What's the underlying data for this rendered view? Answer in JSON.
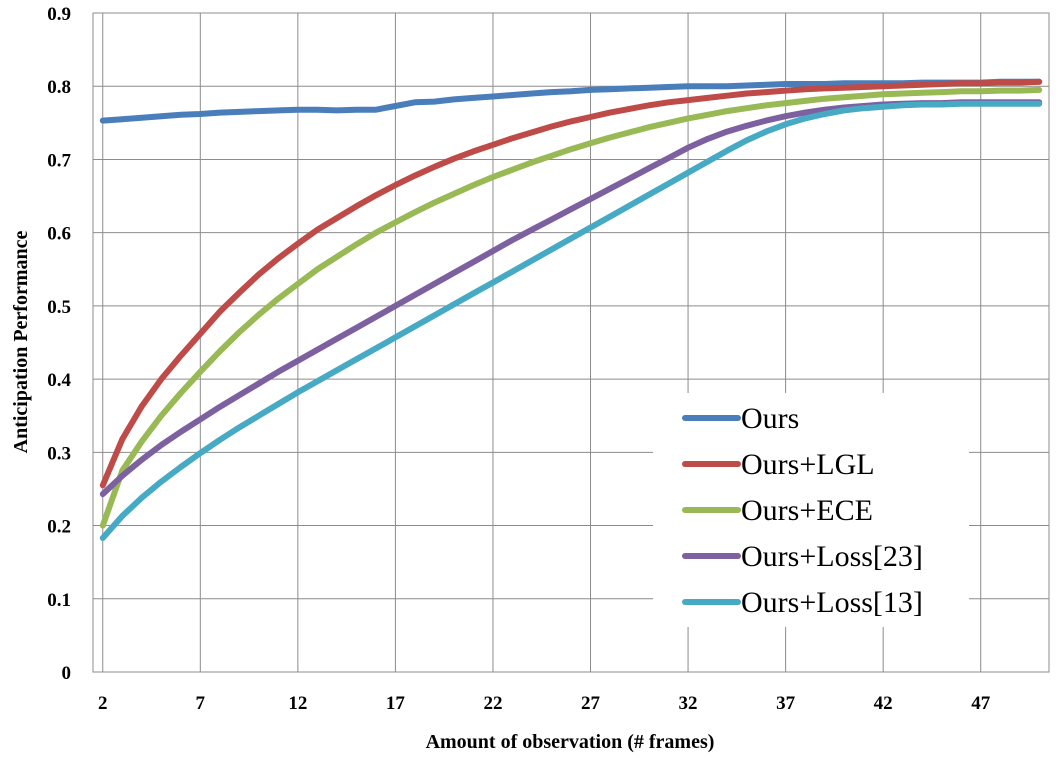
{
  "chart_data": {
    "type": "line",
    "xlabel": "Amount of observation (# frames)",
    "ylabel": "Anticipation Performance",
    "xlim": [
      1.5,
      50.5
    ],
    "ylim": [
      0,
      0.9
    ],
    "x_ticks": [
      "2",
      "7",
      "12",
      "17",
      "22",
      "27",
      "32",
      "37",
      "42",
      "47"
    ],
    "y_ticks": [
      "0",
      "0.1",
      "0.2",
      "0.3",
      "0.4",
      "0.5",
      "0.6",
      "0.7",
      "0.8",
      "0.9"
    ],
    "grid": true,
    "legend_position": "bottom-right",
    "x": [
      2,
      3,
      4,
      5,
      6,
      7,
      8,
      9,
      10,
      11,
      12,
      13,
      14,
      15,
      16,
      17,
      18,
      19,
      20,
      21,
      22,
      23,
      24,
      25,
      26,
      27,
      28,
      29,
      30,
      31,
      32,
      33,
      34,
      35,
      36,
      37,
      38,
      39,
      40,
      41,
      42,
      43,
      44,
      45,
      46,
      47,
      48,
      49,
      50
    ],
    "series": [
      {
        "name": "Ours",
        "color": "#4a7ebb",
        "values": [
          0.753,
          0.755,
          0.757,
          0.759,
          0.761,
          0.762,
          0.764,
          0.765,
          0.766,
          0.767,
          0.768,
          0.768,
          0.767,
          0.768,
          0.768,
          0.773,
          0.778,
          0.779,
          0.782,
          0.784,
          0.786,
          0.788,
          0.79,
          0.792,
          0.793,
          0.795,
          0.796,
          0.797,
          0.798,
          0.799,
          0.8,
          0.8,
          0.8,
          0.801,
          0.802,
          0.803,
          0.803,
          0.803,
          0.804,
          0.804,
          0.804,
          0.804,
          0.805,
          0.805,
          0.805,
          0.805,
          0.806,
          0.806,
          0.806
        ]
      },
      {
        "name": "Ours+LGL",
        "color": "#be4b48",
        "values": [
          0.255,
          0.318,
          0.363,
          0.4,
          0.432,
          0.462,
          0.492,
          0.518,
          0.543,
          0.565,
          0.585,
          0.604,
          0.62,
          0.636,
          0.651,
          0.665,
          0.678,
          0.69,
          0.701,
          0.711,
          0.72,
          0.729,
          0.737,
          0.745,
          0.752,
          0.758,
          0.764,
          0.769,
          0.774,
          0.778,
          0.781,
          0.784,
          0.787,
          0.79,
          0.792,
          0.794,
          0.796,
          0.797,
          0.798,
          0.799,
          0.8,
          0.801,
          0.802,
          0.803,
          0.804,
          0.804,
          0.805,
          0.805,
          0.806
        ]
      },
      {
        "name": "Ours+ECE",
        "color": "#98b954",
        "values": [
          0.2,
          0.275,
          0.315,
          0.35,
          0.381,
          0.41,
          0.438,
          0.464,
          0.488,
          0.51,
          0.53,
          0.55,
          0.567,
          0.584,
          0.6,
          0.614,
          0.628,
          0.641,
          0.653,
          0.665,
          0.676,
          0.686,
          0.696,
          0.705,
          0.714,
          0.722,
          0.73,
          0.737,
          0.744,
          0.75,
          0.756,
          0.761,
          0.766,
          0.77,
          0.774,
          0.777,
          0.78,
          0.783,
          0.785,
          0.787,
          0.789,
          0.79,
          0.791,
          0.792,
          0.793,
          0.793,
          0.794,
          0.794,
          0.795
        ]
      },
      {
        "name": "Ours+Loss[23]",
        "color": "#7d60a0",
        "values": [
          0.243,
          0.268,
          0.29,
          0.31,
          0.328,
          0.345,
          0.362,
          0.378,
          0.394,
          0.41,
          0.425,
          0.44,
          0.455,
          0.47,
          0.485,
          0.5,
          0.515,
          0.53,
          0.545,
          0.56,
          0.575,
          0.59,
          0.604,
          0.618,
          0.632,
          0.646,
          0.66,
          0.674,
          0.688,
          0.702,
          0.716,
          0.728,
          0.738,
          0.746,
          0.753,
          0.759,
          0.764,
          0.768,
          0.771,
          0.773,
          0.775,
          0.776,
          0.777,
          0.777,
          0.778,
          0.778,
          0.778,
          0.778,
          0.778
        ]
      },
      {
        "name": "Ours+Loss[13]",
        "color": "#46aac5",
        "values": [
          0.183,
          0.213,
          0.238,
          0.26,
          0.28,
          0.299,
          0.317,
          0.334,
          0.35,
          0.366,
          0.382,
          0.397,
          0.412,
          0.427,
          0.442,
          0.457,
          0.472,
          0.487,
          0.502,
          0.517,
          0.532,
          0.547,
          0.562,
          0.577,
          0.592,
          0.607,
          0.622,
          0.637,
          0.652,
          0.667,
          0.682,
          0.697,
          0.712,
          0.726,
          0.738,
          0.748,
          0.756,
          0.762,
          0.767,
          0.77,
          0.772,
          0.774,
          0.775,
          0.775,
          0.776,
          0.776,
          0.776,
          0.776,
          0.776
        ]
      }
    ]
  }
}
